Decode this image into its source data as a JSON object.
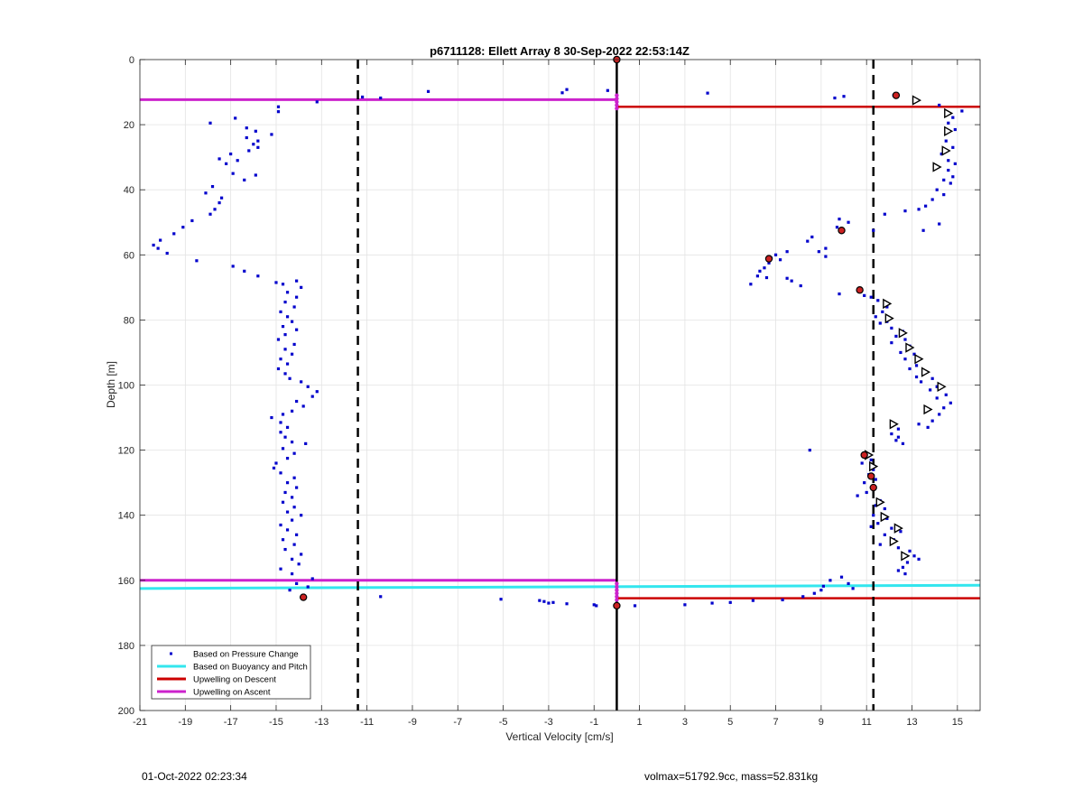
{
  "footer": {
    "timestamp": "01-Oct-2022 02:23:34",
    "volmass": "volmax=51792.9cc, mass=52.831kg"
  },
  "chart_data": {
    "type": "scatter",
    "title": "p6711128: Ellett Array 8 30-Sep-2022 22:53:14Z",
    "xlabel": "Vertical Velocity [cm/s]",
    "ylabel": "Depth [m]",
    "xlim": [
      -21,
      16
    ],
    "ylim": [
      0,
      200
    ],
    "y_reversed": true,
    "grid": true,
    "xticks": [
      -21,
      -19,
      -17,
      -15,
      -13,
      -11,
      -9,
      -7,
      -5,
      -3,
      -1,
      1,
      3,
      5,
      7,
      9,
      11,
      13,
      15
    ],
    "yticks": [
      0,
      20,
      40,
      60,
      80,
      100,
      120,
      140,
      160,
      180,
      200
    ],
    "colors": {
      "pressure": "#0000cc",
      "buoyancy": "#33e6ee",
      "descent": "#cc0000",
      "ascent": "#cc22cc",
      "marker_red": "#cc2222",
      "zero_line": "#000000"
    },
    "legend": {
      "placement": "bottom-left",
      "entries": [
        {
          "key": "pressure",
          "label": "Based on Pressure Change"
        },
        {
          "key": "buoyancy",
          "label": "Based on Buoyancy and Pitch"
        },
        {
          "key": "descent",
          "label": "Upwelling on Descent"
        },
        {
          "key": "ascent",
          "label": "Upwelling on Ascent"
        }
      ]
    },
    "vertical_lines": [
      {
        "x": -11.4,
        "style": "dashed"
      },
      {
        "x": 11.3,
        "style": "dashed"
      },
      {
        "x": 0,
        "style": "solid"
      }
    ],
    "upwelling_ascent": [
      {
        "depth": 12.3,
        "x_from": -21,
        "x_to": 0
      },
      {
        "depth": 160,
        "x_from": -21,
        "x_to": 0
      }
    ],
    "upwelling_descent": [
      {
        "depth": 14.5,
        "x_from": 0,
        "x_to": 16
      },
      {
        "depth": 165.5,
        "x_from": 0,
        "x_to": 16
      }
    ],
    "buoyancy_line": [
      [
        -21,
        162.5
      ],
      [
        16,
        161.5
      ]
    ],
    "pressure_change_points": [
      [
        -13.2,
        13
      ],
      [
        -11.2,
        11.5
      ],
      [
        -10.4,
        11.8
      ],
      [
        -8.3,
        9.8
      ],
      [
        -2.2,
        9.2
      ],
      [
        -2.4,
        10.2
      ],
      [
        -0.4,
        9.5
      ],
      [
        4,
        10.3
      ],
      [
        9.6,
        11.8
      ],
      [
        10,
        11.3
      ],
      [
        12.2,
        11
      ],
      [
        14.2,
        14
      ],
      [
        15.2,
        15.8
      ],
      [
        14.8,
        17.8
      ],
      [
        14.6,
        19.5
      ],
      [
        14.9,
        21.5
      ],
      [
        14.5,
        25
      ],
      [
        14.8,
        27
      ],
      [
        14.3,
        29
      ],
      [
        14.6,
        31
      ],
      [
        14.9,
        32
      ],
      [
        14.6,
        34
      ],
      [
        14.8,
        36
      ],
      [
        14.4,
        37
      ],
      [
        14.7,
        38
      ],
      [
        14.1,
        40
      ],
      [
        14.4,
        41.5
      ],
      [
        13.9,
        43
      ],
      [
        13.6,
        45
      ],
      [
        13.3,
        46
      ],
      [
        12.7,
        46.5
      ],
      [
        14.2,
        50.5
      ],
      [
        13.5,
        52.5
      ],
      [
        11.8,
        47.5
      ],
      [
        11.3,
        52.5
      ],
      [
        10.2,
        50
      ],
      [
        9.8,
        49
      ],
      [
        9.7,
        51.5
      ],
      [
        8.6,
        54.5
      ],
      [
        8.4,
        55.8
      ],
      [
        9.2,
        58
      ],
      [
        8.9,
        59
      ],
      [
        9.2,
        60.5
      ],
      [
        7.5,
        59
      ],
      [
        7,
        60
      ],
      [
        6.8,
        61
      ],
      [
        6.7,
        62.5
      ],
      [
        6.5,
        64
      ],
      [
        6.3,
        65
      ],
      [
        6.2,
        66.5
      ],
      [
        5.9,
        69
      ],
      [
        7.2,
        61.5
      ],
      [
        7.5,
        67.2
      ],
      [
        7.7,
        68
      ],
      [
        8.1,
        69.5
      ],
      [
        6.6,
        67
      ],
      [
        9.8,
        72
      ],
      [
        10.7,
        71
      ],
      [
        10.9,
        72.5
      ],
      [
        11.2,
        73
      ],
      [
        11.5,
        74
      ],
      [
        11.9,
        76
      ],
      [
        11.7,
        77.5
      ],
      [
        11.4,
        79
      ],
      [
        11.9,
        80.5
      ],
      [
        11.6,
        81
      ],
      [
        12.1,
        82.5
      ],
      [
        12.6,
        83.5
      ],
      [
        12.3,
        85
      ],
      [
        12.7,
        86
      ],
      [
        12.1,
        87
      ],
      [
        12.9,
        88
      ],
      [
        12.5,
        90
      ],
      [
        13.1,
        90.5
      ],
      [
        12.7,
        92
      ],
      [
        13.2,
        94
      ],
      [
        12.9,
        95
      ],
      [
        13.6,
        96
      ],
      [
        13.2,
        97.5
      ],
      [
        13.9,
        98
      ],
      [
        13.4,
        99
      ],
      [
        14.1,
        100.5
      ],
      [
        13.8,
        101.5
      ],
      [
        14.5,
        103
      ],
      [
        14.1,
        104
      ],
      [
        14.7,
        105.5
      ],
      [
        14.4,
        107
      ],
      [
        13.6,
        108
      ],
      [
        14.2,
        109
      ],
      [
        13.9,
        111
      ],
      [
        13.3,
        112
      ],
      [
        13.7,
        113
      ],
      [
        12.4,
        113.5
      ],
      [
        12.1,
        115
      ],
      [
        12.4,
        116
      ],
      [
        12.3,
        117
      ],
      [
        12.6,
        118
      ],
      [
        8.5,
        120
      ],
      [
        10.9,
        121
      ],
      [
        11.2,
        123
      ],
      [
        10.8,
        124
      ],
      [
        11.3,
        126
      ],
      [
        11.1,
        127.5
      ],
      [
        11.4,
        129
      ],
      [
        10.9,
        130
      ],
      [
        11.3,
        132
      ],
      [
        11,
        133
      ],
      [
        10.6,
        134
      ],
      [
        11.6,
        135.5
      ],
      [
        11.4,
        137
      ],
      [
        11.8,
        138
      ],
      [
        11.3,
        140
      ],
      [
        11.9,
        141
      ],
      [
        11.5,
        142.5
      ],
      [
        11.2,
        143.5
      ],
      [
        12.1,
        144
      ],
      [
        12.5,
        145
      ],
      [
        11.8,
        146
      ],
      [
        12.2,
        147.5
      ],
      [
        11.6,
        149
      ],
      [
        12.4,
        150
      ],
      [
        12.9,
        151
      ],
      [
        13.1,
        152.5
      ],
      [
        13.3,
        153.5
      ],
      [
        12.8,
        154.5
      ],
      [
        12.6,
        156
      ],
      [
        12.4,
        157
      ],
      [
        12.7,
        158
      ],
      [
        9.9,
        159
      ],
      [
        9.4,
        160
      ],
      [
        10.2,
        161
      ],
      [
        9.1,
        161.8
      ],
      [
        10.4,
        162.5
      ],
      [
        9,
        163
      ],
      [
        8.7,
        164
      ],
      [
        8.2,
        165
      ],
      [
        7.3,
        166
      ],
      [
        6,
        166.2
      ],
      [
        5,
        166.8
      ],
      [
        4.2,
        167
      ],
      [
        3,
        167.5
      ],
      [
        0.8,
        167.8
      ],
      [
        -0.9,
        167.8
      ],
      [
        -1,
        167.5
      ],
      [
        -2.2,
        167.2
      ],
      [
        -2.8,
        166.8
      ],
      [
        -3,
        167
      ],
      [
        -3.2,
        166.5
      ],
      [
        -3.4,
        166.2
      ],
      [
        -5.1,
        165.8
      ],
      [
        -10.4,
        165
      ],
      [
        -13.8,
        165.5
      ],
      [
        -14.4,
        163
      ],
      [
        -13.6,
        162
      ],
      [
        -14.1,
        161
      ],
      [
        -13.4,
        159.5
      ],
      [
        -14.3,
        158
      ],
      [
        -14.8,
        156.5
      ],
      [
        -14,
        155
      ],
      [
        -14.3,
        153.5
      ],
      [
        -13.9,
        152
      ],
      [
        -14.6,
        150.5
      ],
      [
        -14.2,
        149
      ],
      [
        -14.7,
        147.5
      ],
      [
        -14.1,
        146
      ],
      [
        -14.5,
        144.5
      ],
      [
        -14.8,
        143
      ],
      [
        -14.3,
        141.5
      ],
      [
        -13.9,
        140
      ],
      [
        -14.5,
        139
      ],
      [
        -14.2,
        137.5
      ],
      [
        -14.7,
        136
      ],
      [
        -14.3,
        134.5
      ],
      [
        -14.6,
        133
      ],
      [
        -14.1,
        131.5
      ],
      [
        -14.5,
        130
      ],
      [
        -14.2,
        128.5
      ],
      [
        -14.8,
        127
      ],
      [
        -15.1,
        125.5
      ],
      [
        -15,
        124
      ],
      [
        -14.5,
        122.5
      ],
      [
        -14.2,
        121
      ],
      [
        -14.7,
        119.5
      ],
      [
        -13.7,
        118
      ],
      [
        -14.3,
        117.5
      ],
      [
        -14.6,
        116
      ],
      [
        -14.8,
        114.5
      ],
      [
        -14.5,
        113
      ],
      [
        -14.8,
        111.5
      ],
      [
        -15.2,
        110
      ],
      [
        -14.7,
        109
      ],
      [
        -14.3,
        108
      ],
      [
        -13.8,
        106.5
      ],
      [
        -14.1,
        105
      ],
      [
        -13.4,
        103.5
      ],
      [
        -13.2,
        102
      ],
      [
        -13.6,
        100.5
      ],
      [
        -13.9,
        99
      ],
      [
        -14.4,
        98
      ],
      [
        -14.6,
        96.5
      ],
      [
        -14.9,
        95
      ],
      [
        -14.5,
        93.5
      ],
      [
        -14.8,
        92
      ],
      [
        -14.3,
        90.5
      ],
      [
        -14.6,
        89
      ],
      [
        -14.2,
        87.5
      ],
      [
        -14.9,
        86
      ],
      [
        -14.6,
        84.5
      ],
      [
        -14.1,
        83
      ],
      [
        -14.7,
        82
      ],
      [
        -14.3,
        80.5
      ],
      [
        -14.5,
        79
      ],
      [
        -14.8,
        77.5
      ],
      [
        -14.2,
        76
      ],
      [
        -14.6,
        74.5
      ],
      [
        -14.1,
        73
      ],
      [
        -14.5,
        71.5
      ],
      [
        -13.9,
        70
      ],
      [
        -14.7,
        69
      ],
      [
        -14.1,
        68
      ],
      [
        -15,
        68.5
      ],
      [
        -15.8,
        66.5
      ],
      [
        -16.4,
        65
      ],
      [
        -16.9,
        63.5
      ],
      [
        -18.5,
        61.8
      ],
      [
        -19.8,
        59.5
      ],
      [
        -20.2,
        58
      ],
      [
        -20.4,
        57
      ],
      [
        -20.1,
        55.5
      ],
      [
        -19.5,
        53.5
      ],
      [
        -19.1,
        51.5
      ],
      [
        -18.7,
        49.5
      ],
      [
        -17.9,
        47.5
      ],
      [
        -17.7,
        46
      ],
      [
        -17.5,
        44
      ],
      [
        -17.4,
        42.5
      ],
      [
        -18.1,
        41
      ],
      [
        -17.8,
        39
      ],
      [
        -16.4,
        37
      ],
      [
        -16.9,
        35
      ],
      [
        -15.9,
        35.5
      ],
      [
        -17.2,
        32
      ],
      [
        -16.7,
        31
      ],
      [
        -17.5,
        30.5
      ],
      [
        -17,
        29
      ],
      [
        -16.2,
        28
      ],
      [
        -15.8,
        27
      ],
      [
        -16,
        26
      ],
      [
        -15.8,
        25
      ],
      [
        -16.3,
        24
      ],
      [
        -15.2,
        23
      ],
      [
        -15.9,
        22
      ],
      [
        -16.3,
        21
      ],
      [
        -16.8,
        18
      ],
      [
        -17.9,
        19.5
      ],
      [
        -14.9,
        16
      ],
      [
        -14.9,
        14.5
      ]
    ],
    "red_markers": [
      [
        0,
        0
      ],
      [
        12.3,
        11
      ],
      [
        9.9,
        52.5
      ],
      [
        6.7,
        61.2
      ],
      [
        10.7,
        70.8
      ],
      [
        10.9,
        121.5
      ],
      [
        11.2,
        128
      ],
      [
        11.3,
        131.5
      ],
      [
        0,
        167.8
      ],
      [
        -13.8,
        165.2
      ]
    ],
    "triangle_markers": [
      [
        13.2,
        12.5
      ],
      [
        14.6,
        16.5
      ],
      [
        14.6,
        22
      ],
      [
        14.5,
        28
      ],
      [
        14.1,
        33
      ],
      [
        11.9,
        75
      ],
      [
        12,
        79.5
      ],
      [
        12.6,
        84
      ],
      [
        12.9,
        88.5
      ],
      [
        13.3,
        92
      ],
      [
        13.6,
        96
      ],
      [
        14.3,
        100.5
      ],
      [
        13.7,
        107.5
      ],
      [
        12.2,
        112
      ],
      [
        11.1,
        121.5
      ],
      [
        11.3,
        125
      ],
      [
        11.6,
        136
      ],
      [
        11.8,
        140.5
      ],
      [
        12.4,
        144
      ],
      [
        12.2,
        148
      ],
      [
        12.7,
        152.5
      ]
    ],
    "magenta_dots_depths": [
      11,
      12,
      13,
      14,
      15,
      161,
      162,
      163,
      164,
      165,
      166
    ]
  }
}
